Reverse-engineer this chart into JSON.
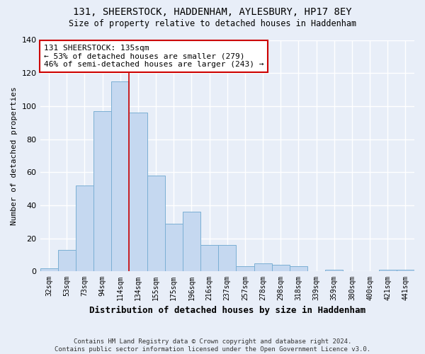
{
  "title1": "131, SHEERSTOCK, HADDENHAM, AYLESBURY, HP17 8EY",
  "title2": "Size of property relative to detached houses in Haddenham",
  "xlabel": "Distribution of detached houses by size in Haddenham",
  "ylabel": "Number of detached properties",
  "footer": "Contains HM Land Registry data © Crown copyright and database right 2024.\nContains public sector information licensed under the Open Government Licence v3.0.",
  "categories": [
    "32sqm",
    "53sqm",
    "73sqm",
    "94sqm",
    "114sqm",
    "134sqm",
    "155sqm",
    "175sqm",
    "196sqm",
    "216sqm",
    "237sqm",
    "257sqm",
    "278sqm",
    "298sqm",
    "318sqm",
    "339sqm",
    "359sqm",
    "380sqm",
    "400sqm",
    "421sqm",
    "441sqm"
  ],
  "values": [
    2,
    13,
    52,
    97,
    115,
    96,
    58,
    29,
    36,
    16,
    16,
    3,
    5,
    4,
    3,
    0,
    1,
    0,
    0,
    1,
    1
  ],
  "bar_color": "#c5d8f0",
  "bar_edge_color": "#7bafd4",
  "annotation_text": "131 SHEERSTOCK: 135sqm\n← 53% of detached houses are smaller (279)\n46% of semi-detached houses are larger (243) →",
  "annotation_box_color": "#ffffff",
  "annotation_box_edge_color": "#cc0000",
  "vline_color": "#cc0000",
  "vline_x": 4.5,
  "background_color": "#e8eef8",
  "plot_background": "#e8eef8",
  "grid_color": "#ffffff",
  "ylim": [
    0,
    140
  ],
  "yticks": [
    0,
    20,
    40,
    60,
    80,
    100,
    120,
    140
  ]
}
